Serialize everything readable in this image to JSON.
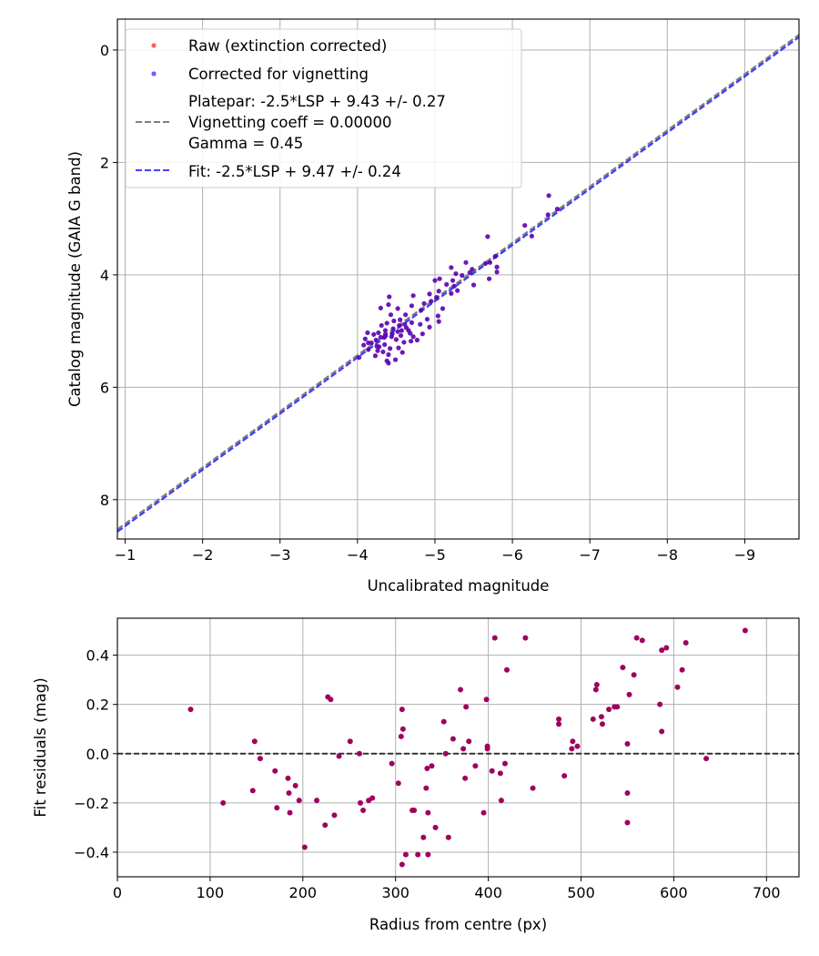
{
  "chart_data": [
    {
      "type": "scatter",
      "xlabel": "Uncalibrated magnitude",
      "ylabel": "Catalog magnitude (GAIA G band)",
      "xlim": [
        -0.9,
        -9.7
      ],
      "ylim": [
        8.7,
        -0.55
      ],
      "x_inverted": true,
      "y_inverted": true,
      "grid": true,
      "xticks": [
        -1,
        -2,
        -3,
        -4,
        -5,
        -6,
        -7,
        -8,
        -9
      ],
      "xtick_labels": [
        "−1",
        "−2",
        "−3",
        "−4",
        "−5",
        "−6",
        "−7",
        "−8",
        "−9"
      ],
      "yticks": [
        0,
        2,
        4,
        6,
        8
      ],
      "ytick_labels": [
        "0",
        "2",
        "4",
        "6",
        "8"
      ],
      "legend_position": "top-left",
      "legend": [
        {
          "label": "Raw (extinction corrected)",
          "marker": "point",
          "color": "#ff0000"
        },
        {
          "label": "Corrected for vignetting",
          "marker": "point",
          "color": "#0000ff"
        },
        {
          "label_lines": [
            "Platepar: -2.5*LSP + 9.43 +/- 0.27",
            "Vignetting coeff = 0.00000",
            "Gamma = 0.45"
          ],
          "marker": "dashed-line",
          "color": "#808080"
        },
        {
          "label": "Fit: -2.5*LSP + 9.47 +/- 0.24",
          "marker": "dashed-line",
          "color": "#0000ff"
        }
      ],
      "lines": [
        {
          "name": "Platepar",
          "slope": 1.0,
          "intercept": 9.43,
          "color": "#808080",
          "style": "dashed"
        },
        {
          "name": "Fit",
          "slope": 1.0,
          "intercept": 9.47,
          "color": "#0000ff",
          "style": "dashed"
        }
      ],
      "series": [
        {
          "name": "Stars",
          "color": "#5a00b0",
          "points": [
            [
              -6.47,
              2.59
            ],
            [
              -6.58,
              2.83
            ],
            [
              -6.46,
              2.93
            ],
            [
              -6.16,
              3.12
            ],
            [
              -6.25,
              3.31
            ],
            [
              -5.68,
              3.32
            ],
            [
              -5.78,
              3.67
            ],
            [
              -5.71,
              3.78
            ],
            [
              -5.65,
              3.8
            ],
            [
              -5.8,
              3.86
            ],
            [
              -5.8,
              3.95
            ],
            [
              -5.7,
              4.07
            ],
            [
              -5.4,
              3.78
            ],
            [
              -5.48,
              3.9
            ],
            [
              -5.21,
              3.87
            ],
            [
              -5.45,
              3.96
            ],
            [
              -5.27,
              3.98
            ],
            [
              -5.35,
              4.01
            ],
            [
              -5.5,
              4.18
            ],
            [
              -5.23,
              4.1
            ],
            [
              -5.06,
              4.07
            ],
            [
              -5.0,
              4.1
            ],
            [
              -5.25,
              4.2
            ],
            [
              -5.15,
              4.17
            ],
            [
              -5.29,
              4.28
            ],
            [
              -5.05,
              4.29
            ],
            [
              -5.21,
              4.33
            ],
            [
              -4.93,
              4.34
            ],
            [
              -5.02,
              4.4
            ],
            [
              -4.95,
              4.47
            ],
            [
              -4.86,
              4.51
            ],
            [
              -5.1,
              4.6
            ],
            [
              -4.82,
              4.63
            ],
            [
              -5.04,
              4.73
            ],
            [
              -4.9,
              4.79
            ],
            [
              -4.81,
              4.88
            ],
            [
              -5.05,
              4.83
            ],
            [
              -4.93,
              4.93
            ],
            [
              -4.72,
              4.37
            ],
            [
              -4.7,
              4.55
            ],
            [
              -4.62,
              4.71
            ],
            [
              -4.52,
              4.6
            ],
            [
              -4.41,
              4.39
            ],
            [
              -4.4,
              4.53
            ],
            [
              -4.3,
              4.59
            ],
            [
              -4.43,
              4.71
            ],
            [
              -4.55,
              4.8
            ],
            [
              -4.47,
              4.82
            ],
            [
              -4.61,
              4.88
            ],
            [
              -4.7,
              4.85
            ],
            [
              -4.63,
              4.94
            ],
            [
              -4.57,
              4.99
            ],
            [
              -4.68,
              5.04
            ],
            [
              -4.72,
              5.1
            ],
            [
              -4.84,
              5.05
            ],
            [
              -4.77,
              5.16
            ],
            [
              -4.52,
              5.01
            ],
            [
              -4.45,
              5.05
            ],
            [
              -4.38,
              4.86
            ],
            [
              -4.31,
              4.9
            ],
            [
              -4.36,
              4.99
            ],
            [
              -4.27,
              5.03
            ],
            [
              -4.21,
              5.06
            ],
            [
              -4.3,
              5.11
            ],
            [
              -4.24,
              5.16
            ],
            [
              -4.13,
              5.03
            ],
            [
              -4.1,
              5.14
            ],
            [
              -4.18,
              5.21
            ],
            [
              -4.25,
              5.27
            ],
            [
              -4.35,
              5.24
            ],
            [
              -4.42,
              5.31
            ],
            [
              -4.33,
              5.37
            ],
            [
              -4.26,
              5.35
            ],
            [
              -4.4,
              5.42
            ],
            [
              -4.38,
              5.53
            ],
            [
              -4.4,
              5.57
            ],
            [
              -4.49,
              5.51
            ],
            [
              -4.58,
              5.38
            ],
            [
              -4.5,
              5.15
            ],
            [
              -4.53,
              5.3
            ],
            [
              -4.08,
              5.25
            ],
            [
              -4.02,
              5.47
            ],
            [
              -4.14,
              5.33
            ],
            [
              -4.23,
              5.44
            ],
            [
              -4.6,
              5.2
            ],
            [
              -4.44,
              5.1
            ],
            [
              -4.35,
              5.11
            ],
            [
              -4.46,
              4.96
            ],
            [
              -4.36,
              5.06
            ],
            [
              -4.28,
              5.28
            ],
            [
              -4.14,
              5.21
            ],
            [
              -4.56,
              5.08
            ],
            [
              -4.69,
              5.18
            ],
            [
              -4.66,
              4.99
            ],
            [
              -4.54,
              4.9
            ]
          ]
        }
      ]
    },
    {
      "type": "scatter",
      "xlabel": "Radius from centre (px)",
      "ylabel": "Fit residuals (mag)",
      "xlim": [
        0,
        735
      ],
      "ylim": [
        -0.5,
        0.55
      ],
      "grid": true,
      "xticks": [
        0,
        100,
        200,
        300,
        400,
        500,
        600,
        700
      ],
      "xtick_labels": [
        "0",
        "100",
        "200",
        "300",
        "400",
        "500",
        "600",
        "700"
      ],
      "yticks": [
        -0.4,
        -0.2,
        0.0,
        0.2,
        0.4
      ],
      "ytick_labels": [
        "−0.4",
        "−0.2",
        "0.0",
        "0.2",
        "0.4"
      ],
      "hline": {
        "y": 0.0,
        "color": "#000000",
        "style": "dashed"
      },
      "series": [
        {
          "name": "Residuals",
          "color": "#a0005e",
          "points": [
            [
              79,
              0.18
            ],
            [
              114,
              -0.2
            ],
            [
              146,
              -0.15
            ],
            [
              148,
              0.05
            ],
            [
              154,
              -0.02
            ],
            [
              170,
              -0.07
            ],
            [
              172,
              -0.22
            ],
            [
              184,
              -0.1
            ],
            [
              185,
              -0.16
            ],
            [
              186,
              -0.24
            ],
            [
              192,
              -0.13
            ],
            [
              196,
              -0.19
            ],
            [
              202,
              -0.38
            ],
            [
              215,
              -0.19
            ],
            [
              224,
              -0.29
            ],
            [
              227,
              0.23
            ],
            [
              230,
              0.22
            ],
            [
              234,
              -0.25
            ],
            [
              239,
              -0.01
            ],
            [
              251,
              0.05
            ],
            [
              261,
              0.0
            ],
            [
              262,
              -0.2
            ],
            [
              265,
              -0.23
            ],
            [
              271,
              -0.19
            ],
            [
              275,
              -0.18
            ],
            [
              296,
              -0.04
            ],
            [
              303,
              -0.12
            ],
            [
              306,
              0.07
            ],
            [
              307,
              -0.45
            ],
            [
              307,
              0.18
            ],
            [
              308,
              0.1
            ],
            [
              311,
              -0.41
            ],
            [
              318,
              -0.23
            ],
            [
              320,
              -0.23
            ],
            [
              324,
              -0.41
            ],
            [
              330,
              -0.34
            ],
            [
              333,
              -0.14
            ],
            [
              334,
              -0.06
            ],
            [
              335,
              -0.24
            ],
            [
              335,
              -0.41
            ],
            [
              339,
              -0.05
            ],
            [
              343,
              -0.3
            ],
            [
              352,
              0.13
            ],
            [
              354,
              0.0
            ],
            [
              357,
              -0.34
            ],
            [
              362,
              0.06
            ],
            [
              370,
              0.26
            ],
            [
              373,
              0.02
            ],
            [
              375,
              -0.1
            ],
            [
              376,
              0.19
            ],
            [
              379,
              0.05
            ],
            [
              386,
              -0.05
            ],
            [
              395,
              -0.24
            ],
            [
              398,
              0.22
            ],
            [
              399,
              0.03
            ],
            [
              399,
              0.02
            ],
            [
              404,
              -0.07
            ],
            [
              407,
              0.47
            ],
            [
              413,
              -0.08
            ],
            [
              414,
              -0.19
            ],
            [
              418,
              -0.04
            ],
            [
              420,
              0.34
            ],
            [
              440,
              0.47
            ],
            [
              448,
              -0.14
            ],
            [
              476,
              0.14
            ],
            [
              476,
              0.12
            ],
            [
              482,
              -0.09
            ],
            [
              490,
              0.02
            ],
            [
              491,
              0.05
            ],
            [
              496,
              0.03
            ],
            [
              513,
              0.14
            ],
            [
              516,
              0.26
            ],
            [
              517,
              0.28
            ],
            [
              522,
              0.15
            ],
            [
              523,
              0.12
            ],
            [
              530,
              0.18
            ],
            [
              536,
              0.19
            ],
            [
              539,
              0.19
            ],
            [
              545,
              0.35
            ],
            [
              550,
              0.04
            ],
            [
              550,
              -0.16
            ],
            [
              550,
              -0.28
            ],
            [
              552,
              0.24
            ],
            [
              557,
              0.32
            ],
            [
              560,
              0.47
            ],
            [
              566,
              0.46
            ],
            [
              585,
              0.2
            ],
            [
              587,
              0.09
            ],
            [
              587,
              0.42
            ],
            [
              592,
              0.43
            ],
            [
              604,
              0.27
            ],
            [
              609,
              0.34
            ],
            [
              613,
              0.45
            ],
            [
              635,
              -0.02
            ],
            [
              677,
              0.5
            ]
          ]
        }
      ]
    }
  ]
}
